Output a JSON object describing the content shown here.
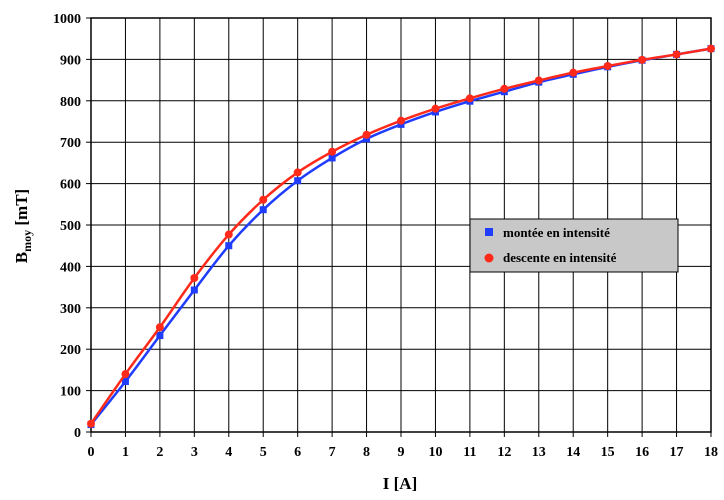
{
  "chart_data": {
    "type": "line",
    "title": "",
    "xlabel": "I [A]",
    "ylabel_main": "B",
    "ylabel_sub": "moy",
    "ylabel_unit": " [mT]",
    "xlim": [
      0,
      18
    ],
    "ylim": [
      0,
      1000
    ],
    "xticks": [
      0,
      1,
      2,
      3,
      4,
      5,
      6,
      7,
      8,
      9,
      10,
      11,
      12,
      13,
      14,
      15,
      16,
      17,
      18
    ],
    "yticks": [
      0,
      100,
      200,
      300,
      400,
      500,
      600,
      700,
      800,
      900,
      1000
    ],
    "grid": true,
    "legend_position": "right-middle",
    "x": [
      0,
      1,
      2,
      3,
      4,
      5,
      6,
      7,
      8,
      9,
      10,
      11,
      12,
      13,
      14,
      15,
      16,
      17,
      18
    ],
    "series": [
      {
        "name": "montée en intensité",
        "color": "#1f3cff",
        "marker": "square",
        "values": [
          18,
          122,
          233,
          343,
          450,
          537,
          607,
          662,
          708,
          743,
          773,
          799,
          822,
          845,
          864,
          882,
          898,
          912,
          926
        ]
      },
      {
        "name": "descente en intensité",
        "color": "#ff2a1a",
        "marker": "circle",
        "values": [
          20,
          140,
          253,
          372,
          477,
          561,
          627,
          677,
          718,
          752,
          781,
          806,
          829,
          849,
          868,
          884,
          899,
          912,
          926
        ]
      }
    ]
  }
}
